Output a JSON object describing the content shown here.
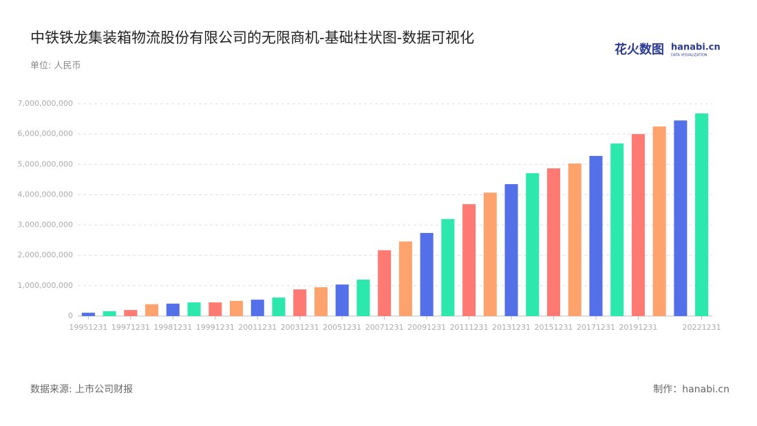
{
  "chart_data": {
    "type": "bar",
    "title": "中铁铁龙集装箱物流股份有限公司的无限商机-基础柱状图-数据可视化",
    "subtitle": "单位: 人民币",
    "source": "数据来源: 上市公司财报",
    "credit": "制作：hanabi.cn",
    "logo": {
      "name": "花火数图",
      "site": "hanabi.cn",
      "tagline": "DATA VISUALIZATION"
    },
    "categories": [
      "19951231",
      null,
      "19971231",
      null,
      "19981231",
      null,
      "19991231",
      null,
      "20011231",
      null,
      "20031231",
      null,
      "20051231",
      null,
      "20071231",
      null,
      "20091231",
      null,
      "20111231",
      null,
      "20131231",
      null,
      "20151231",
      null,
      "20171231",
      null,
      "20191231",
      null,
      null,
      "20221231"
    ],
    "values": [
      110000000,
      160000000,
      200000000,
      390000000,
      410000000,
      450000000,
      450000000,
      500000000,
      540000000,
      610000000,
      880000000,
      950000000,
      1040000000,
      1200000000,
      2170000000,
      2460000000,
      2740000000,
      3200000000,
      3690000000,
      4070000000,
      4350000000,
      4710000000,
      4870000000,
      5030000000,
      5280000000,
      5690000000,
      6000000000,
      6250000000,
      6450000000,
      6680000000
    ],
    "colors": [
      "#5470e8",
      "#2de8ad",
      "#ff7a72",
      "#ffa36e"
    ],
    "ylim": [
      0,
      7000000000
    ],
    "yticks": [
      0,
      {
        "value": 1000000000,
        "label": "1,000,000,000"
      },
      {
        "value": 2000000000,
        "label": "2,000,000,000"
      },
      {
        "value": 3000000000,
        "label": "3,000,000,000"
      },
      {
        "value": 4000000000,
        "label": "4,000,000,000"
      },
      {
        "value": 5000000000,
        "label": "5,000,000,000"
      },
      {
        "value": 6000000000,
        "label": "6,000,000,000"
      },
      {
        "value": 7000000000,
        "label": "7,000,000,000"
      }
    ],
    "grid": true
  }
}
